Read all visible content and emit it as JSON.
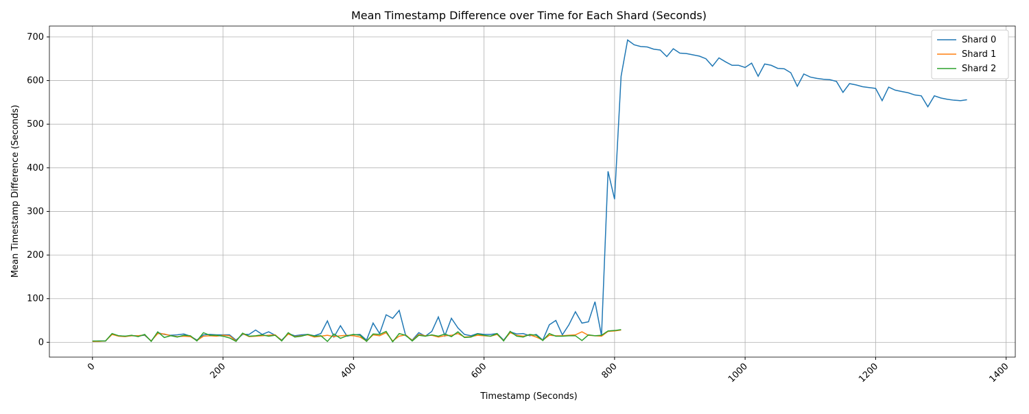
{
  "chart_data": {
    "type": "line",
    "title": "Mean Timestamp Difference over Time for Each Shard (Seconds)",
    "x_label": "Timestamp (Seconds)",
    "y_label": "Mean Timestamp Difference (Seconds)",
    "x": [
      0,
      10,
      20,
      30,
      40,
      50,
      60,
      70,
      80,
      90,
      100,
      110,
      120,
      130,
      140,
      150,
      160,
      170,
      180,
      190,
      200,
      210,
      220,
      230,
      240,
      250,
      260,
      270,
      280,
      290,
      300,
      310,
      320,
      330,
      340,
      350,
      360,
      370,
      380,
      390,
      400,
      410,
      420,
      430,
      440,
      450,
      460,
      470,
      480,
      490,
      500,
      510,
      520,
      530,
      540,
      550,
      560,
      570,
      580,
      590,
      600,
      610,
      620,
      630,
      640,
      650,
      660,
      670,
      680,
      690,
      700,
      710,
      720,
      730,
      740,
      750,
      760,
      770,
      780,
      790,
      800,
      810,
      820,
      830,
      840,
      850,
      860,
      870,
      880,
      890,
      900,
      910,
      920,
      930,
      940,
      950,
      960,
      970,
      980,
      990,
      1000,
      1010,
      1020,
      1030,
      1040,
      1050,
      1060,
      1070,
      1080,
      1090,
      1100,
      1110,
      1120,
      1130,
      1140,
      1150,
      1160,
      1170,
      1180,
      1190,
      1200,
      1210,
      1220,
      1230,
      1240,
      1250,
      1260,
      1270,
      1280,
      1290,
      1300,
      1310,
      1320,
      1330,
      1340
    ],
    "series": [
      {
        "name": "Shard 0",
        "color": "#1f77b4",
        "values": [
          2,
          3,
          3,
          19,
          15,
          14,
          15,
          15,
          16,
          3,
          22,
          18,
          16,
          17,
          19,
          14,
          5,
          17,
          18,
          17,
          17,
          17,
          5,
          18,
          18,
          28,
          18,
          24,
          16,
          5,
          20,
          15,
          17,
          18,
          15,
          20,
          49,
          12,
          38,
          14,
          17,
          18,
          5,
          44,
          20,
          63,
          55,
          73,
          15,
          5,
          22,
          14,
          25,
          58,
          15,
          55,
          33,
          18,
          15,
          20,
          18,
          18,
          20,
          5,
          24,
          19,
          20,
          15,
          18,
          5,
          40,
          50,
          17,
          40,
          70,
          44,
          47,
          93,
          15,
          392,
          328,
          610,
          693,
          682,
          678,
          677,
          672,
          670,
          655,
          673,
          663,
          662,
          659,
          656,
          650,
          633,
          652,
          643,
          635,
          635,
          630,
          640,
          610,
          638,
          635,
          628,
          627,
          618,
          587,
          615,
          608,
          605,
          603,
          602,
          598,
          573,
          593,
          590,
          586,
          584,
          582,
          554,
          585,
          578,
          575,
          572,
          567,
          565,
          540,
          565,
          560,
          557,
          555,
          554,
          556
        ]
      },
      {
        "name": "Shard 1",
        "color": "#ff7f0e",
        "values": [
          2,
          2,
          3,
          18,
          14,
          13,
          15,
          15,
          17,
          3,
          20,
          19,
          15,
          13,
          14,
          13,
          4,
          14,
          15,
          14,
          16,
          15,
          3,
          20,
          13,
          14,
          15,
          16,
          17,
          4,
          19,
          13,
          15,
          17,
          12,
          14,
          16,
          13,
          15,
          16,
          15,
          12,
          3,
          17,
          15,
          22,
          3,
          14,
          17,
          4,
          18,
          15,
          16,
          12,
          15,
          16,
          20,
          12,
          13,
          16,
          15,
          14,
          18,
          4,
          22,
          16,
          14,
          17,
          12,
          5,
          16,
          15,
          15,
          16,
          17,
          24,
          16,
          15,
          14,
          25,
          26,
          28,
          null,
          null,
          null,
          null,
          null,
          null,
          null,
          null,
          null,
          null,
          null,
          null,
          null,
          null,
          null,
          null,
          null,
          null,
          null,
          null,
          null,
          null,
          null,
          null,
          null,
          null,
          null,
          null,
          null,
          null,
          null,
          null,
          null,
          null,
          null,
          null,
          null,
          null,
          null,
          null,
          null,
          null,
          null,
          null,
          null,
          null,
          null,
          null,
          null,
          null,
          null,
          null,
          null
        ]
      },
      {
        "name": "Shard 2",
        "color": "#2ca02c",
        "values": [
          3,
          3,
          3,
          20,
          15,
          14,
          16,
          13,
          18,
          2,
          24,
          11,
          15,
          12,
          16,
          15,
          3,
          22,
          16,
          16,
          14,
          10,
          2,
          21,
          14,
          15,
          17,
          14,
          16,
          3,
          22,
          12,
          14,
          18,
          14,
          15,
          2,
          19,
          9,
          15,
          18,
          16,
          2,
          19,
          18,
          25,
          1,
          20,
          16,
          3,
          16,
          14,
          17,
          14,
          19,
          13,
          24,
          11,
          12,
          19,
          16,
          14,
          20,
          3,
          25,
          14,
          12,
          18,
          16,
          4,
          20,
          14,
          14,
          15,
          15,
          4,
          17,
          15,
          16,
          26,
          27,
          29,
          null,
          null,
          null,
          null,
          null,
          null,
          null,
          null,
          null,
          null,
          null,
          null,
          null,
          null,
          null,
          null,
          null,
          null,
          null,
          null,
          null,
          null,
          null,
          null,
          null,
          null,
          null,
          null,
          null,
          null,
          null,
          null,
          null,
          null,
          null,
          null,
          null,
          null,
          null,
          null,
          null,
          null,
          null,
          null,
          null,
          null,
          null,
          null,
          null,
          null,
          null,
          null,
          null
        ]
      }
    ],
    "xlim": [
      -66,
      1414
    ],
    "ylim": [
      -34,
      725
    ],
    "xticks": [
      0,
      200,
      400,
      600,
      800,
      1000,
      1200,
      1400
    ],
    "yticks": [
      0,
      100,
      200,
      300,
      400,
      500,
      600,
      700
    ],
    "grid": true,
    "legend": "upper right"
  }
}
